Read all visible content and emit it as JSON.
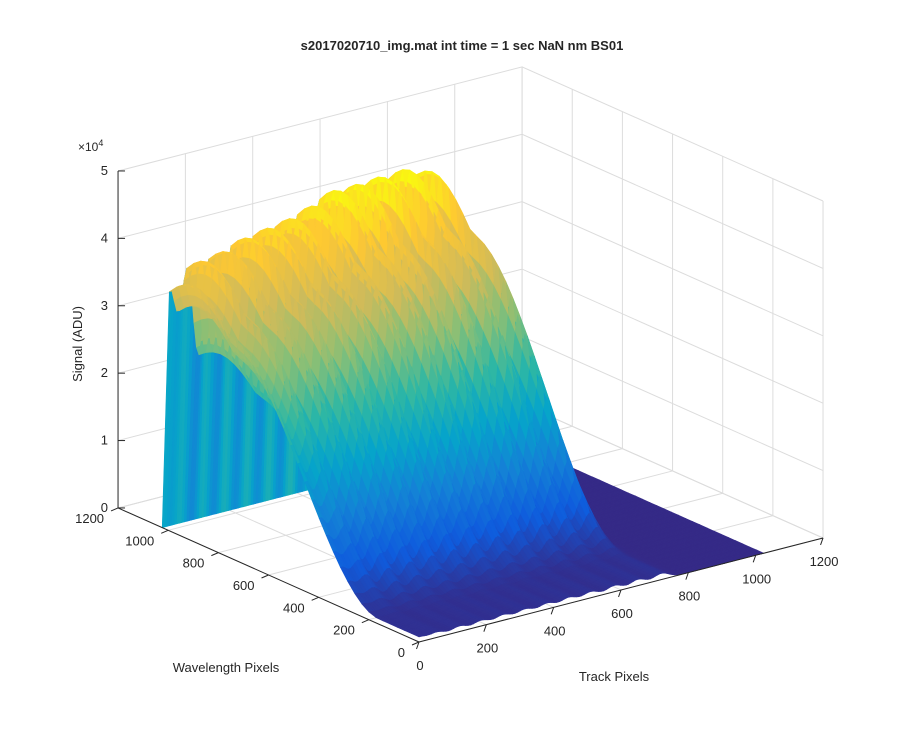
{
  "chart_data": {
    "type": "surface",
    "title": "s2017020710_img.mat int time = 1 sec  NaN nm BS01",
    "xlabel": "Track Pixels",
    "ylabel": "Wavelength Pixels",
    "zlabel": "Signal (ADU)",
    "x_ticks": [
      "0",
      "200",
      "400",
      "600",
      "800",
      "1000",
      "1200"
    ],
    "y_ticks": [
      "0",
      "200",
      "400",
      "600",
      "800",
      "1000",
      "1200"
    ],
    "z_ticks": [
      "0",
      "1",
      "2",
      "3",
      "4",
      "5"
    ],
    "z_exponent_base": "×10",
    "z_exponent_power": "4",
    "xlim": [
      0,
      1200
    ],
    "ylim": [
      0,
      1200
    ],
    "zlim": [
      0,
      50000
    ],
    "grid": true,
    "colormap": "parula",
    "colormap_colors": [
      "#352a87",
      "#0f5cdd",
      "#1481d6",
      "#06a4ca",
      "#2eb7a4",
      "#87bf77",
      "#d1bb59",
      "#fec832",
      "#f9fb0e"
    ],
    "data_extent": {
      "track": [
        0,
        1024
      ],
      "wavelength": [
        0,
        1024
      ]
    },
    "fibers": [
      {
        "track_center": 0,
        "peak": 36000
      },
      {
        "track_center": 55,
        "peak": 38500
      },
      {
        "track_center": 120,
        "peak": 40500
      },
      {
        "track_center": 185,
        "peak": 41500
      },
      {
        "track_center": 250,
        "peak": 42000
      },
      {
        "track_center": 315,
        "peak": 42500
      },
      {
        "track_center": 380,
        "peak": 43500
      },
      {
        "track_center": 445,
        "peak": 45000
      },
      {
        "track_center": 510,
        "peak": 45500
      },
      {
        "track_center": 580,
        "peak": 46000
      },
      {
        "track_center": 650,
        "peak": 46000
      },
      {
        "track_center": 720,
        "peak": 45500
      }
    ],
    "spectral_profile": {
      "peak_wavelength": 1000,
      "falloff_start": 760,
      "falloff_end": 160
    }
  }
}
